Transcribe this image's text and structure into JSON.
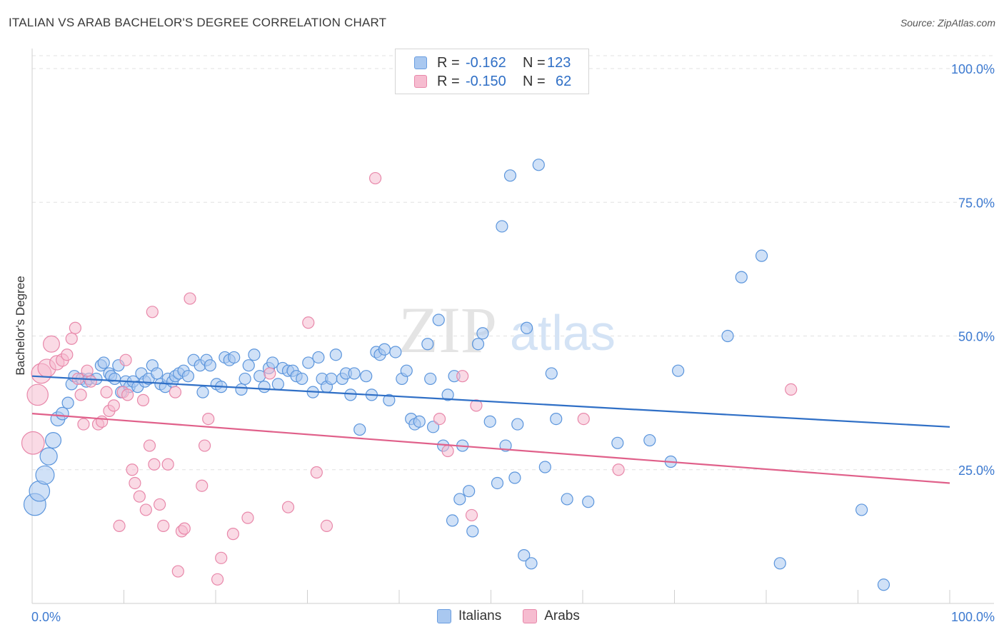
{
  "title": "ITALIAN VS ARAB BACHELOR'S DEGREE CORRELATION CHART",
  "source": "Source: ZipAtlas.com",
  "watermark": {
    "zip": "ZIP",
    "atlas": "atlas"
  },
  "legend": {
    "rows": [
      {
        "r_label": "R =",
        "r_value": "-0.162",
        "n_label": "N =",
        "n_value": "123",
        "color": "#a9c8f0",
        "border": "#6a9ee0"
      },
      {
        "r_label": "R =",
        "r_value": "-0.150",
        "n_label": "N =",
        "n_value": "62",
        "color": "#f6bcd0",
        "border": "#e888aa"
      }
    ]
  },
  "bottom_legend": [
    {
      "label": "Italians",
      "color": "#a9c8f0",
      "border": "#6a9ee0"
    },
    {
      "label": "Arabs",
      "color": "#f6bcd0",
      "border": "#e888aa"
    }
  ],
  "chart_data": {
    "type": "scatter",
    "title": "ITALIAN VS ARAB BACHELOR'S DEGREE CORRELATION CHART",
    "xlabel": "",
    "ylabel": "Bachelor's Degree",
    "xlim": [
      0,
      100
    ],
    "ylim": [
      0,
      100
    ],
    "x_tick_labels": [
      "0.0%",
      "100.0%"
    ],
    "y_ticks": [
      25,
      50,
      75,
      100
    ],
    "y_tick_labels": [
      "25.0%",
      "50.0%",
      "75.0%",
      "100.0%"
    ],
    "grid": "horizontal dashed",
    "legend_placement": "top-center and bottom",
    "series": [
      {
        "name": "Italians",
        "color": "#5b95dc",
        "fill": "#a9c8f0",
        "trend": {
          "x": [
            0,
            100
          ],
          "y": [
            42.5,
            33.0
          ],
          "color": "#2f6fc6"
        },
        "points": [
          [
            0.3,
            18.5
          ],
          [
            0.8,
            21
          ],
          [
            1.4,
            24
          ],
          [
            1.8,
            27.5
          ],
          [
            2.3,
            30.5
          ],
          [
            2.8,
            34.5
          ],
          [
            3.3,
            35.5
          ],
          [
            3.9,
            37.5
          ],
          [
            4.3,
            41
          ],
          [
            4.6,
            42.5
          ],
          [
            5.4,
            42
          ],
          [
            5.9,
            41.5
          ],
          [
            6.2,
            42
          ],
          [
            7.0,
            42
          ],
          [
            7.5,
            44.5
          ],
          [
            7.8,
            45
          ],
          [
            8.4,
            43
          ],
          [
            8.6,
            42.5
          ],
          [
            9.0,
            42
          ],
          [
            9.4,
            44.5
          ],
          [
            9.7,
            39.5
          ],
          [
            10.2,
            41.5
          ],
          [
            10.6,
            40.5
          ],
          [
            11.0,
            41.5
          ],
          [
            11.5,
            40.5
          ],
          [
            11.9,
            43
          ],
          [
            12.3,
            41.5
          ],
          [
            12.7,
            42
          ],
          [
            13.1,
            44.5
          ],
          [
            13.6,
            43
          ],
          [
            14.0,
            41
          ],
          [
            14.5,
            40.5
          ],
          [
            14.8,
            42
          ],
          [
            15.3,
            41.5
          ],
          [
            15.6,
            42.5
          ],
          [
            16.0,
            43
          ],
          [
            16.5,
            43.5
          ],
          [
            17.0,
            42.5
          ],
          [
            17.6,
            45.5
          ],
          [
            18.3,
            44.5
          ],
          [
            18.6,
            39.5
          ],
          [
            19.0,
            45.5
          ],
          [
            19.4,
            44.5
          ],
          [
            20.1,
            41
          ],
          [
            20.6,
            40.5
          ],
          [
            21.0,
            46
          ],
          [
            21.5,
            45.5
          ],
          [
            22.0,
            46
          ],
          [
            22.8,
            40
          ],
          [
            23.2,
            42
          ],
          [
            23.6,
            44.5
          ],
          [
            24.2,
            46.5
          ],
          [
            24.8,
            42.5
          ],
          [
            25.3,
            40.5
          ],
          [
            25.8,
            44
          ],
          [
            26.2,
            45
          ],
          [
            26.8,
            41
          ],
          [
            27.3,
            44
          ],
          [
            27.9,
            43.5
          ],
          [
            28.4,
            43.5
          ],
          [
            28.8,
            42.5
          ],
          [
            29.4,
            42
          ],
          [
            30.1,
            45
          ],
          [
            30.6,
            39.5
          ],
          [
            31.2,
            46
          ],
          [
            31.6,
            42
          ],
          [
            32.1,
            40.5
          ],
          [
            32.6,
            42
          ],
          [
            33.1,
            46.5
          ],
          [
            33.8,
            42
          ],
          [
            34.2,
            43
          ],
          [
            34.7,
            39
          ],
          [
            35.1,
            43
          ],
          [
            35.7,
            32.5
          ],
          [
            36.4,
            42.5
          ],
          [
            37.0,
            39
          ],
          [
            37.5,
            47
          ],
          [
            37.9,
            46.5
          ],
          [
            38.4,
            47.5
          ],
          [
            38.9,
            38
          ],
          [
            39.6,
            47
          ],
          [
            40.3,
            42
          ],
          [
            40.8,
            43.5
          ],
          [
            41.3,
            34.5
          ],
          [
            41.7,
            33.5
          ],
          [
            42.2,
            34
          ],
          [
            43.1,
            48.5
          ],
          [
            43.4,
            42
          ],
          [
            43.7,
            33
          ],
          [
            44.3,
            53
          ],
          [
            44.8,
            29.5
          ],
          [
            45.3,
            39
          ],
          [
            45.8,
            15.5
          ],
          [
            46.0,
            42.5
          ],
          [
            46.6,
            19.5
          ],
          [
            46.9,
            29.5
          ],
          [
            47.6,
            21
          ],
          [
            48.0,
            13.5
          ],
          [
            48.6,
            48.5
          ],
          [
            49.1,
            50.5
          ],
          [
            49.9,
            34
          ],
          [
            50.7,
            22.5
          ],
          [
            51.2,
            70.5
          ],
          [
            51.6,
            29.5
          ],
          [
            52.1,
            80
          ],
          [
            52.6,
            23.5
          ],
          [
            52.9,
            33.5
          ],
          [
            53.6,
            9
          ],
          [
            53.9,
            51.5
          ],
          [
            54.4,
            7.5
          ],
          [
            55.2,
            82
          ],
          [
            55.9,
            25.5
          ],
          [
            56.6,
            43
          ],
          [
            57.1,
            34.5
          ],
          [
            58.3,
            19.5
          ],
          [
            60.6,
            19
          ],
          [
            63.8,
            30
          ],
          [
            67.3,
            30.5
          ],
          [
            69.6,
            26.5
          ],
          [
            70.4,
            43.5
          ],
          [
            75.8,
            50
          ],
          [
            77.3,
            61
          ],
          [
            79.5,
            65
          ],
          [
            81.5,
            7.5
          ],
          [
            90.4,
            17.5
          ],
          [
            92.8,
            3.5
          ]
        ]
      },
      {
        "name": "Arabs",
        "color": "#e888aa",
        "fill": "#f6bcd0",
        "trend": {
          "x": [
            0,
            100
          ],
          "y": [
            35.5,
            22.5
          ],
          "color": "#e0608a"
        },
        "points": [
          [
            0.1,
            30
          ],
          [
            0.6,
            39
          ],
          [
            1.0,
            43
          ],
          [
            1.6,
            44
          ],
          [
            2.1,
            48.5
          ],
          [
            2.7,
            45
          ],
          [
            3.3,
            45.5
          ],
          [
            3.8,
            46.5
          ],
          [
            4.3,
            49.5
          ],
          [
            4.7,
            51.5
          ],
          [
            5.0,
            42
          ],
          [
            5.3,
            39
          ],
          [
            5.6,
            33.5
          ],
          [
            6.0,
            43.5
          ],
          [
            6.4,
            41.5
          ],
          [
            7.2,
            33.5
          ],
          [
            7.6,
            34
          ],
          [
            8.1,
            39.5
          ],
          [
            8.4,
            36
          ],
          [
            8.9,
            37
          ],
          [
            9.5,
            14.5
          ],
          [
            9.9,
            39.5
          ],
          [
            10.2,
            45.5
          ],
          [
            10.4,
            39
          ],
          [
            10.9,
            25
          ],
          [
            11.2,
            22.5
          ],
          [
            11.7,
            20
          ],
          [
            12.1,
            38
          ],
          [
            12.4,
            17.5
          ],
          [
            12.8,
            29.5
          ],
          [
            13.1,
            54.5
          ],
          [
            13.3,
            26
          ],
          [
            13.9,
            18.5
          ],
          [
            14.3,
            14.5
          ],
          [
            14.8,
            26
          ],
          [
            15.6,
            39.5
          ],
          [
            15.9,
            6
          ],
          [
            16.3,
            13.5
          ],
          [
            16.6,
            14
          ],
          [
            17.2,
            57
          ],
          [
            18.5,
            22
          ],
          [
            18.8,
            29.5
          ],
          [
            19.2,
            34.5
          ],
          [
            20.2,
            4.5
          ],
          [
            20.6,
            8.5
          ],
          [
            21.9,
            13
          ],
          [
            23.5,
            16
          ],
          [
            25.9,
            43
          ],
          [
            27.9,
            18
          ],
          [
            30.1,
            52.5
          ],
          [
            31.0,
            24.5
          ],
          [
            32.1,
            14.5
          ],
          [
            37.4,
            79.5
          ],
          [
            44.4,
            34.5
          ],
          [
            45.3,
            28.5
          ],
          [
            46.9,
            42.5
          ],
          [
            47.9,
            16.5
          ],
          [
            48.4,
            37
          ],
          [
            60.1,
            34.5
          ],
          [
            63.9,
            25
          ],
          [
            82.7,
            40
          ]
        ]
      }
    ]
  }
}
